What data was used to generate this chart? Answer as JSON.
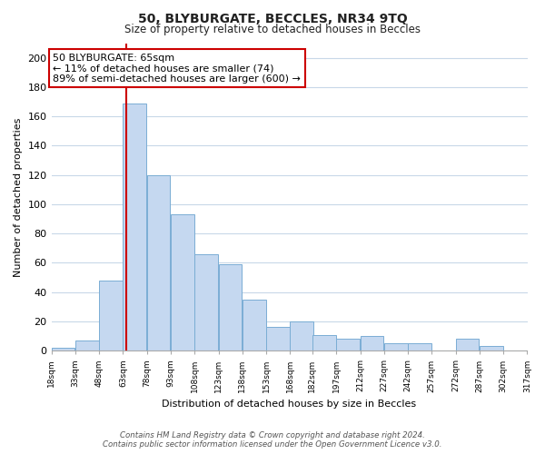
{
  "title": "50, BLYBURGATE, BECCLES, NR34 9TQ",
  "subtitle": "Size of property relative to detached houses in Beccles",
  "xlabel": "Distribution of detached houses by size in Beccles",
  "ylabel": "Number of detached properties",
  "bins": [
    18,
    33,
    48,
    63,
    78,
    93,
    108,
    123,
    138,
    153,
    168,
    182,
    197,
    212,
    227,
    242,
    257,
    272,
    287,
    302,
    317
  ],
  "bin_labels": [
    "18sqm",
    "33sqm",
    "48sqm",
    "63sqm",
    "78sqm",
    "93sqm",
    "108sqm",
    "123sqm",
    "138sqm",
    "153sqm",
    "168sqm",
    "182sqm",
    "197sqm",
    "212sqm",
    "227sqm",
    "242sqm",
    "257sqm",
    "272sqm",
    "287sqm",
    "302sqm",
    "317sqm"
  ],
  "counts": [
    2,
    7,
    48,
    169,
    120,
    93,
    66,
    59,
    35,
    16,
    20,
    11,
    8,
    10,
    5,
    5,
    0,
    8,
    3,
    0
  ],
  "bar_color": "#c5d8f0",
  "bar_edge_color": "#7aadd4",
  "property_size": 65,
  "vline_color": "#cc0000",
  "annotation_line1": "50 BLYBURGATE: 65sqm",
  "annotation_line2": "← 11% of detached houses are smaller (74)",
  "annotation_line3": "89% of semi-detached houses are larger (600) →",
  "annotation_box_color": "#ffffff",
  "annotation_box_edge_color": "#cc0000",
  "ylim": [
    0,
    210
  ],
  "yticks": [
    0,
    20,
    40,
    60,
    80,
    100,
    120,
    140,
    160,
    180,
    200
  ],
  "grid_color": "#c8d8e8",
  "background_color": "#ffffff",
  "footer_line1": "Contains HM Land Registry data © Crown copyright and database right 2024.",
  "footer_line2": "Contains public sector information licensed under the Open Government Licence v3.0."
}
